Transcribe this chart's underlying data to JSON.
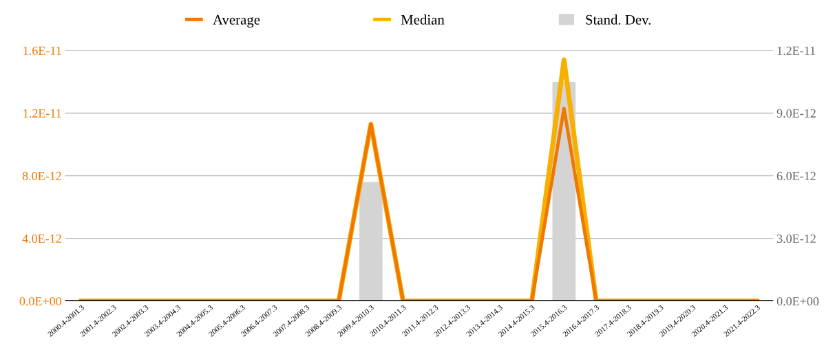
{
  "chart_data": {
    "type": "line",
    "categories": [
      "2000.4-2001.3",
      "2001.4-2002.3",
      "2002.4-2003.3",
      "2003.4-2004.3",
      "2004.4-2005.3",
      "2005.4-2006.3",
      "2006.4-2007.3",
      "2007.4-2008.3",
      "2008.4-2009.3",
      "2009.4-2010.3",
      "2010.4-2011.3",
      "2011.4-2012.3",
      "2012.4-2013.3",
      "2013.4-2014.3",
      "2014.4-2015.3",
      "2015.4-2016.3",
      "2016.4-2017.3",
      "2017.4-2018.3",
      "2018.4-2019.3",
      "2019.4-2020.3",
      "2020.4-2021.3",
      "2021.4-2022.3"
    ],
    "series": [
      {
        "name": "Stand. Dev.",
        "type": "bar",
        "axis": "y2",
        "color": "#d4d4d4",
        "values": [
          0,
          0,
          0,
          0,
          0,
          0,
          0,
          0,
          0,
          5.7e-12,
          0,
          0,
          0,
          0,
          0,
          1.05e-11,
          0,
          0,
          0,
          0,
          0,
          0
        ]
      },
      {
        "name": "Median",
        "color": "#f8b000",
        "values": [
          0,
          0,
          0,
          0,
          0,
          0,
          0,
          0,
          0,
          1.13e-11,
          0,
          0,
          0,
          0,
          0,
          1.54e-11,
          0,
          0,
          0,
          0,
          0,
          0
        ]
      },
      {
        "name": "Average",
        "color": "#f07800",
        "values": [
          0,
          0,
          0,
          0,
          0,
          0,
          0,
          0,
          0,
          1.13e-11,
          0,
          0,
          0,
          0,
          0,
          1.23e-11,
          0,
          0,
          0,
          0,
          0,
          0
        ]
      }
    ],
    "ylim": [
      0,
      1.6e-11
    ],
    "yticks": [
      {
        "value": 0,
        "label": "0.0E+00"
      },
      {
        "value": 4e-12,
        "label": "4.0E-12"
      },
      {
        "value": 8e-12,
        "label": "8.0E-12"
      },
      {
        "value": 1.2e-11,
        "label": "1.2E-11"
      },
      {
        "value": 1.6e-11,
        "label": "1.6E-11"
      }
    ],
    "y2lim": [
      0,
      1.2e-11
    ],
    "y2ticks": [
      {
        "value": 0,
        "label": "0.0E+00"
      },
      {
        "value": 3e-12,
        "label": "3.0E-12"
      },
      {
        "value": 6e-12,
        "label": "6.0E-12"
      },
      {
        "value": 9e-12,
        "label": "9.0E-12"
      },
      {
        "value": 1.2e-11,
        "label": "1.2E-11"
      }
    ],
    "grid": "y",
    "legend": "top",
    "marker": "none",
    "line_style": "solid"
  }
}
